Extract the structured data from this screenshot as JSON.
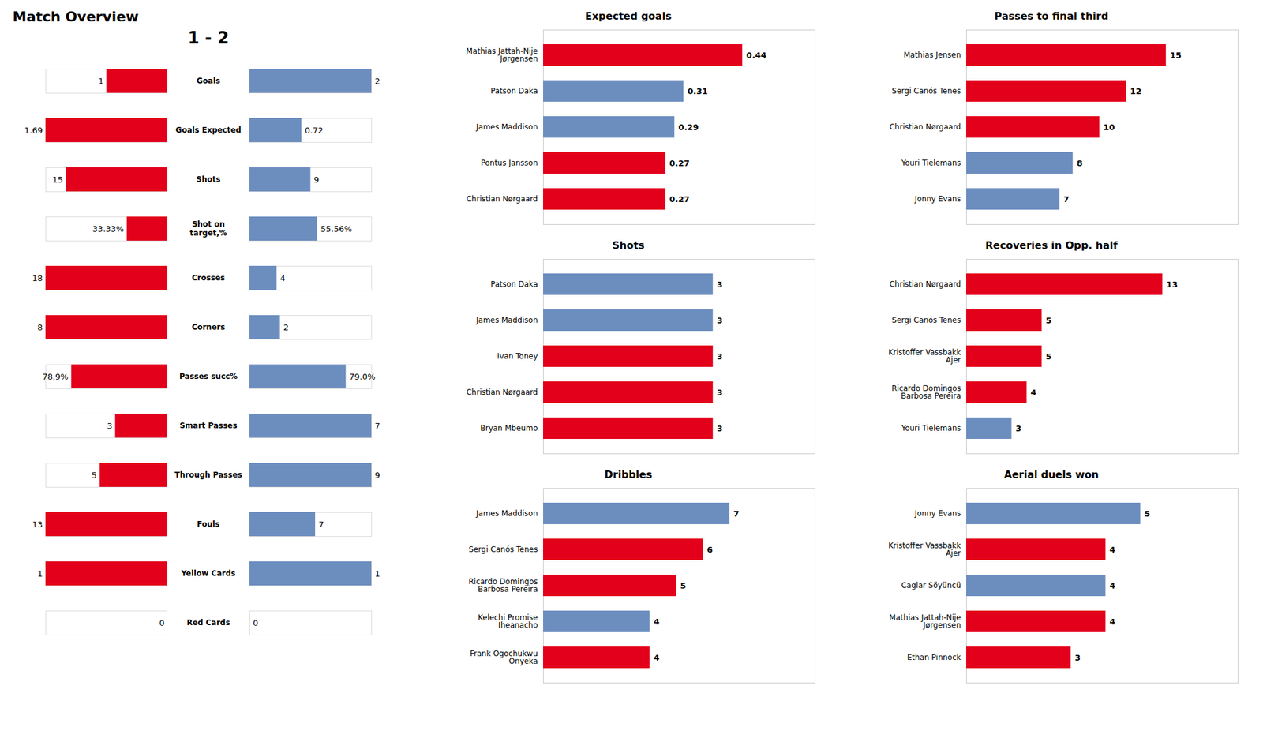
{
  "chart_data": [
    {
      "type": "bar",
      "orientation": "horizontal",
      "title": "Match Overview",
      "subtitle": "1 - 2",
      "categories": [
        "Goals",
        "Goals Expected",
        "Shots",
        "Shot on\ntarget,%",
        "Crosses",
        "Corners",
        "Passes succ%",
        "Smart Passes",
        "Through Passes",
        "Fouls",
        "Yellow Cards",
        "Red Cards"
      ],
      "series": [
        {
          "color": "#E3001B",
          "values": [
            1,
            1.69,
            15,
            33.33,
            18,
            8,
            78.9,
            3,
            5,
            13,
            1,
            0
          ],
          "value_labels": [
            "1",
            "1.69",
            "15",
            "33.33%",
            "18",
            "8",
            "78.9%",
            "3",
            "5",
            "13",
            "1",
            "0"
          ]
        },
        {
          "color": "#6C8EBF",
          "values": [
            2,
            0.72,
            9,
            55.56,
            4,
            2,
            79.0,
            7,
            9,
            7,
            1,
            0
          ],
          "value_labels": [
            "2",
            "0.72",
            "9",
            "55.56%",
            "4",
            "2",
            "79.0%",
            "7",
            "9",
            "7",
            "1",
            "0"
          ]
        }
      ],
      "max_values": [
        2,
        1.69,
        18,
        100,
        18,
        8,
        100,
        7,
        9,
        13,
        1,
        1
      ],
      "data_labels": true,
      "tick_labels": false,
      "grid": false
    },
    {
      "type": "bar",
      "orientation": "horizontal",
      "title": "Expected goals",
      "categories": [
        "Mathias Jattah-Nije\nJørgensen",
        "Patson Daka",
        "James Maddison",
        "Pontus Jansson",
        "Christian Nørgaard"
      ],
      "values": [
        0.44,
        0.31,
        0.29,
        0.27,
        0.27
      ],
      "colors": [
        "#E3001B",
        "#6C8EBF",
        "#6C8EBF",
        "#E3001B",
        "#E3001B"
      ],
      "xlim": [
        0,
        0.6
      ],
      "data_labels": true,
      "tick_labels": "y",
      "grid": false
    },
    {
      "type": "bar",
      "orientation": "horizontal",
      "title": "Passes to final third",
      "categories": [
        "Mathias Jensen",
        "Sergi Canós Tenes",
        "Christian Nørgaard",
        "Youri Tielemans",
        "Jonny Evans"
      ],
      "values": [
        15,
        12,
        10,
        8,
        7
      ],
      "colors": [
        "#E3001B",
        "#E3001B",
        "#E3001B",
        "#6C8EBF",
        "#6C8EBF"
      ],
      "xlim": [
        0,
        20.4
      ],
      "data_labels": true,
      "tick_labels": "y",
      "grid": false
    },
    {
      "type": "bar",
      "orientation": "horizontal",
      "title": "Shots",
      "categories": [
        "Patson Daka",
        "James Maddison",
        "Ivan Toney",
        "Christian Nørgaard",
        "Bryan Mbeumo"
      ],
      "values": [
        3,
        3,
        3,
        3,
        3
      ],
      "colors": [
        "#6C8EBF",
        "#6C8EBF",
        "#E3001B",
        "#E3001B",
        "#E3001B"
      ],
      "xlim": [
        0,
        4.8
      ],
      "data_labels": true,
      "tick_labels": "y",
      "grid": false
    },
    {
      "type": "bar",
      "orientation": "horizontal",
      "title": "Recoveries in Opp. half",
      "categories": [
        "Christian Nørgaard",
        "Sergi Canós Tenes",
        "Kristoffer Vassbakk\nAjer",
        "Ricardo Domingos\nBarbosa Pereira",
        "Youri Tielemans"
      ],
      "values": [
        13,
        5,
        5,
        4,
        3
      ],
      "colors": [
        "#E3001B",
        "#E3001B",
        "#E3001B",
        "#E3001B",
        "#6C8EBF"
      ],
      "xlim": [
        0,
        18
      ],
      "data_labels": true,
      "tick_labels": "y",
      "grid": false
    },
    {
      "type": "bar",
      "orientation": "horizontal",
      "title": "Dribbles",
      "categories": [
        "James Maddison",
        "Sergi Canós Tenes",
        "Ricardo Domingos\nBarbosa Pereira",
        "Kelechi Promise\nIheanacho",
        "Frank Ogochukwu\nOnyeka"
      ],
      "values": [
        7,
        6,
        5,
        4,
        4
      ],
      "colors": [
        "#6C8EBF",
        "#E3001B",
        "#E3001B",
        "#6C8EBF",
        "#E3001B"
      ],
      "xlim": [
        0,
        10.2
      ],
      "data_labels": true,
      "tick_labels": "y",
      "grid": false
    },
    {
      "type": "bar",
      "orientation": "horizontal",
      "title": "Aerial duels won",
      "categories": [
        "Jonny Evans",
        "Kristoffer Vassbakk\nAjer",
        "Caglar Söyüncü",
        "Mathias Jattah-Nije\nJørgensen",
        "Ethan Pinnock"
      ],
      "values": [
        5,
        4,
        4,
        4,
        3
      ],
      "colors": [
        "#6C8EBF",
        "#E3001B",
        "#6C8EBF",
        "#E3001B",
        "#E3001B"
      ],
      "xlim": [
        0,
        7.8
      ],
      "data_labels": true,
      "tick_labels": "y",
      "grid": false
    }
  ]
}
